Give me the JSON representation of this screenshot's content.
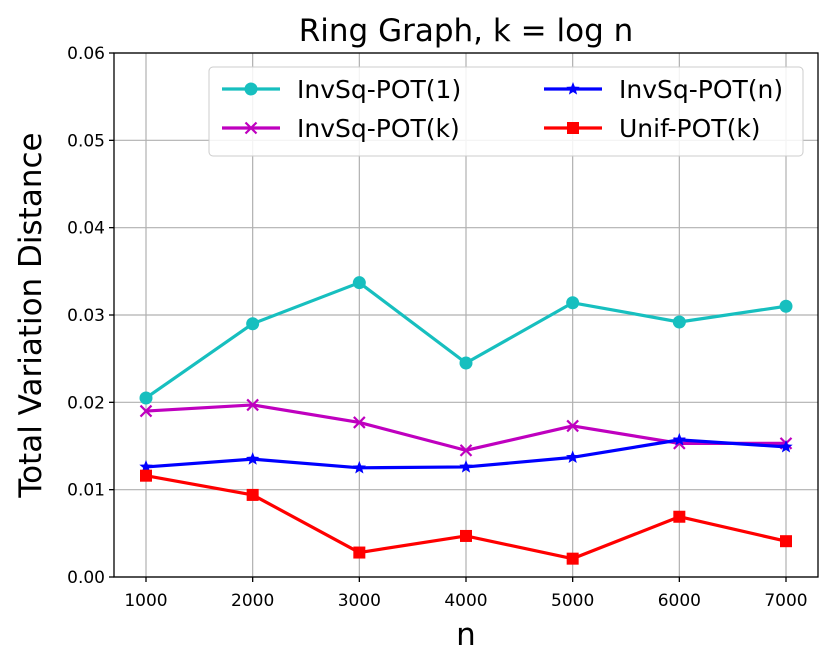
{
  "chart_data": {
    "type": "line",
    "title": "Ring Graph, k = log n",
    "xlabel": "n",
    "ylabel": "Total Variation Distance",
    "x": [
      1000,
      2000,
      3000,
      4000,
      5000,
      6000,
      7000
    ],
    "xticks": [
      "1000",
      "2000",
      "3000",
      "4000",
      "5000",
      "6000",
      "7000"
    ],
    "yticks": [
      "0.00",
      "0.01",
      "0.02",
      "0.03",
      "0.04",
      "0.05",
      "0.06"
    ],
    "xlim": [
      700,
      7300
    ],
    "ylim": [
      0,
      0.06
    ],
    "grid": true,
    "legend_position": "top-right",
    "series": [
      {
        "name": "InvSq-POT(1)",
        "color": "#17bfbf",
        "marker": "circle",
        "values": [
          0.0205,
          0.029,
          0.0337,
          0.0245,
          0.0314,
          0.0292,
          0.031
        ]
      },
      {
        "name": "InvSq-POT(k)",
        "color": "#bf00bf",
        "marker": "x",
        "values": [
          0.019,
          0.0197,
          0.0177,
          0.0145,
          0.0173,
          0.0153,
          0.0153
        ]
      },
      {
        "name": "InvSq-POT(n)",
        "color": "#0000ff",
        "marker": "star",
        "values": [
          0.0126,
          0.0135,
          0.0125,
          0.0126,
          0.0137,
          0.0157,
          0.0149
        ]
      },
      {
        "name": "Unif-POT(k)",
        "color": "#ff0000",
        "marker": "square",
        "values": [
          0.0116,
          0.0094,
          0.0028,
          0.0047,
          0.0021,
          0.0069,
          0.0041
        ]
      }
    ]
  }
}
